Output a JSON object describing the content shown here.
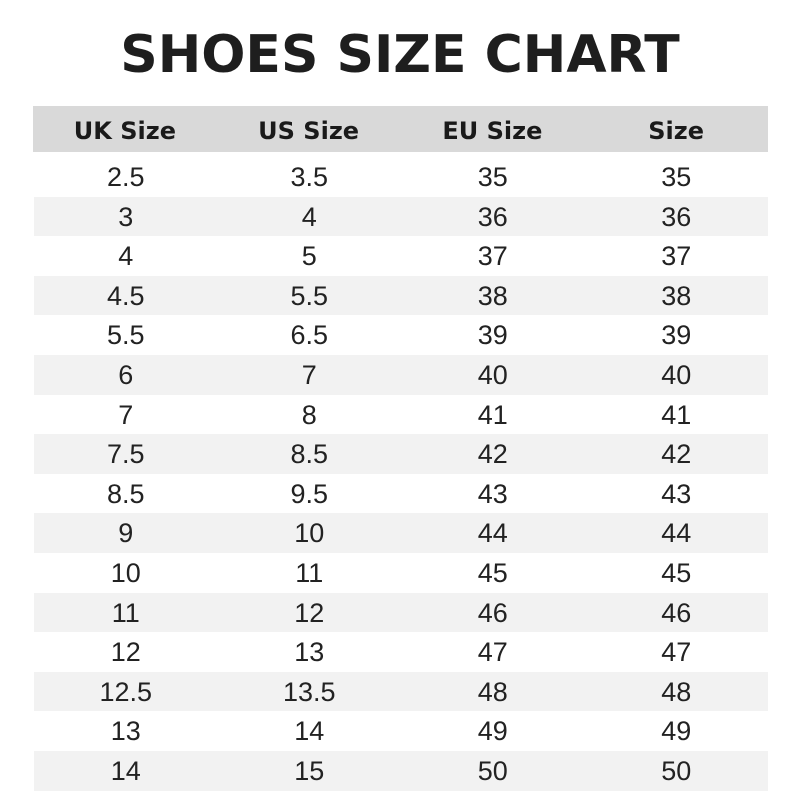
{
  "title": "SHOES SIZE CHART",
  "columns": [
    "UK Size",
    "US Size",
    "EU Size",
    "Size"
  ],
  "rows": [
    [
      "2.5",
      "3.5",
      "35",
      "35"
    ],
    [
      "3",
      "4",
      "36",
      "36"
    ],
    [
      "4",
      "5",
      "37",
      "37"
    ],
    [
      "4.5",
      "5.5",
      "38",
      "38"
    ],
    [
      "5.5",
      "6.5",
      "39",
      "39"
    ],
    [
      "6",
      "7",
      "40",
      "40"
    ],
    [
      "7",
      "8",
      "41",
      "41"
    ],
    [
      "7.5",
      "8.5",
      "42",
      "42"
    ],
    [
      "8.5",
      "9.5",
      "43",
      "43"
    ],
    [
      "9",
      "10",
      "44",
      "44"
    ],
    [
      "10",
      "11",
      "45",
      "45"
    ],
    [
      "11",
      "12",
      "46",
      "46"
    ],
    [
      "12",
      "13",
      "47",
      "47"
    ],
    [
      "12.5",
      "13.5",
      "48",
      "48"
    ],
    [
      "13",
      "14",
      "49",
      "49"
    ],
    [
      "14",
      "15",
      "50",
      "50"
    ]
  ],
  "colors": {
    "header_bg": "#d9d9d9",
    "stripe_bg": "#f2f2f2"
  }
}
